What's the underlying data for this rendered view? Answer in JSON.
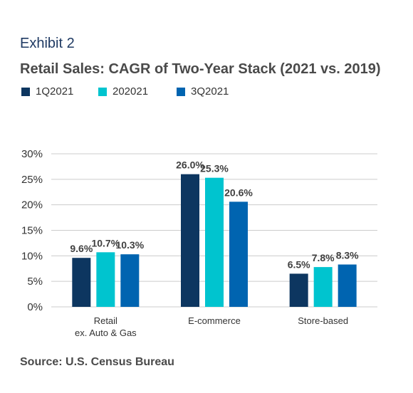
{
  "header": {
    "exhibit": "Exhibit 2",
    "title": "Retail Sales: CAGR of Two-Year Stack (2021 vs. 2019)"
  },
  "footer": {
    "source": "Source: U.S. Census Bureau"
  },
  "colors": {
    "series": [
      "#0d3660",
      "#00c4cf",
      "#0064b0"
    ],
    "grid": "#cccccc",
    "axis_text": "#333333",
    "label_text": "#404040"
  },
  "chart_data": {
    "type": "bar",
    "categories": [
      "Retail ex. Auto & Gas",
      "E-commerce",
      "Store-based"
    ],
    "category_lines": [
      [
        "Retail",
        "ex. Auto & Gas"
      ],
      [
        "E-commerce"
      ],
      [
        "Store-based"
      ]
    ],
    "series": [
      {
        "name": "1Q2021",
        "values": [
          9.6,
          26.0,
          6.5
        ]
      },
      {
        "name": "202021",
        "values": [
          10.7,
          25.3,
          7.8
        ]
      },
      {
        "name": "3Q2021",
        "values": [
          10.3,
          20.6,
          8.3
        ]
      }
    ],
    "data_labels": [
      [
        "9.6%",
        "26.0%",
        "6.5%"
      ],
      [
        "10.7%",
        "25.3%",
        "7.8%"
      ],
      [
        "10.3%",
        "20.6%",
        "8.3%"
      ]
    ],
    "yticks": [
      0,
      5,
      10,
      15,
      20,
      25,
      30
    ],
    "ytick_labels": [
      "0%",
      "5%",
      "10%",
      "15%",
      "20%",
      "25%",
      "30%"
    ],
    "ylim": [
      0,
      30
    ],
    "grid": true,
    "legend": "top-left"
  }
}
